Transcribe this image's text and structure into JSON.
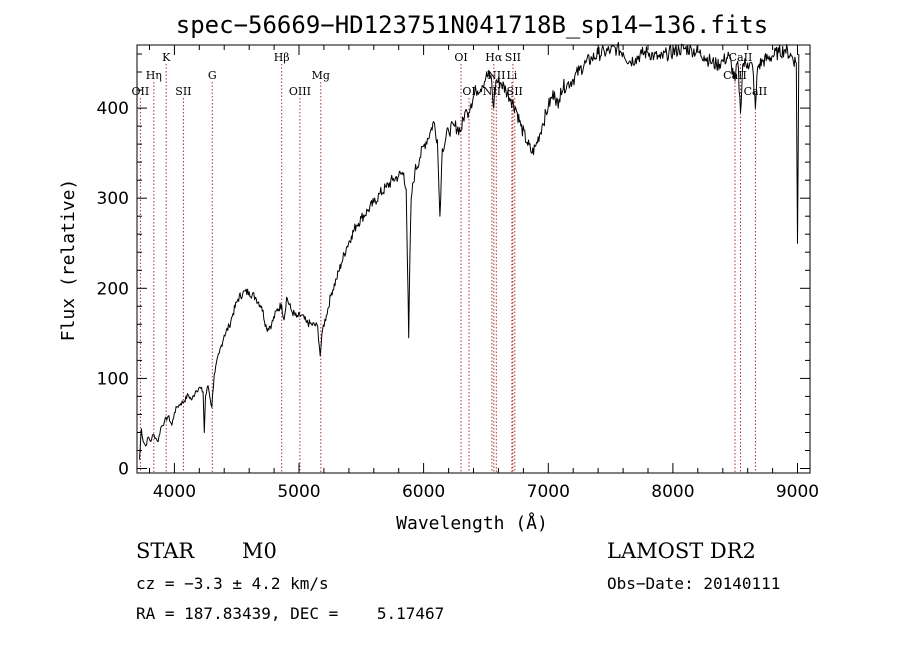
{
  "chart_data": {
    "type": "line",
    "title": "spec−56669−HD123751N041718B_sp14−136.fits",
    "xlabel": "Wavelength (Å)",
    "ylabel": "Flux (relative)",
    "xlim": [
      3700,
      9100
    ],
    "ylim": [
      -5,
      470
    ],
    "x_ticks": [
      4000,
      5000,
      6000,
      7000,
      8000,
      9000
    ],
    "y_ticks": [
      0,
      100,
      200,
      300,
      400
    ],
    "grid": false,
    "colors": {
      "spectrum": "#000000",
      "line_marker": "#b03030"
    },
    "series": [
      {
        "values": [
          [
            3720,
            10
          ],
          [
            3735,
            44
          ],
          [
            3750,
            30
          ],
          [
            3770,
            25
          ],
          [
            3790,
            35
          ],
          [
            3810,
            30
          ],
          [
            3830,
            38
          ],
          [
            3850,
            34
          ],
          [
            3870,
            30
          ],
          [
            3890,
            45
          ],
          [
            3920,
            52
          ],
          [
            3950,
            58
          ],
          [
            3980,
            48
          ],
          [
            4000,
            62
          ],
          [
            4020,
            68
          ],
          [
            4050,
            72
          ],
          [
            4080,
            75
          ],
          [
            4110,
            82
          ],
          [
            4140,
            76
          ],
          [
            4170,
            86
          ],
          [
            4200,
            90
          ],
          [
            4230,
            85
          ],
          [
            4240,
            40
          ],
          [
            4250,
            80
          ],
          [
            4270,
            92
          ],
          [
            4300,
            68
          ],
          [
            4320,
            105
          ],
          [
            4360,
            128
          ],
          [
            4400,
            148
          ],
          [
            4440,
            158
          ],
          [
            4470,
            172
          ],
          [
            4510,
            188
          ],
          [
            4550,
            195
          ],
          [
            4600,
            196
          ],
          [
            4650,
            190
          ],
          [
            4700,
            180
          ],
          [
            4740,
            155
          ],
          [
            4780,
            160
          ],
          [
            4820,
            175
          ],
          [
            4860,
            182
          ],
          [
            4880,
            165
          ],
          [
            4900,
            190
          ],
          [
            4940,
            175
          ],
          [
            4980,
            168
          ],
          [
            5020,
            170
          ],
          [
            5060,
            162
          ],
          [
            5100,
            160
          ],
          [
            5150,
            158
          ],
          [
            5170,
            125
          ],
          [
            5190,
            155
          ],
          [
            5220,
            170
          ],
          [
            5260,
            195
          ],
          [
            5300,
            210
          ],
          [
            5340,
            228
          ],
          [
            5380,
            245
          ],
          [
            5420,
            258
          ],
          [
            5460,
            270
          ],
          [
            5500,
            278
          ],
          [
            5550,
            286
          ],
          [
            5600,
            295
          ],
          [
            5650,
            305
          ],
          [
            5700,
            312
          ],
          [
            5750,
            320
          ],
          [
            5800,
            325
          ],
          [
            5840,
            328
          ],
          [
            5860,
            310
          ],
          [
            5870,
            230
          ],
          [
            5880,
            145
          ],
          [
            5890,
            235
          ],
          [
            5900,
            300
          ],
          [
            5930,
            330
          ],
          [
            5970,
            345
          ],
          [
            6000,
            358
          ],
          [
            6050,
            372
          ],
          [
            6080,
            385
          ],
          [
            6110,
            365
          ],
          [
            6130,
            280
          ],
          [
            6150,
            355
          ],
          [
            6200,
            375
          ],
          [
            6250,
            380
          ],
          [
            6300,
            375
          ],
          [
            6330,
            395
          ],
          [
            6350,
            395
          ],
          [
            6380,
            405
          ],
          [
            6420,
            420
          ],
          [
            6470,
            425
          ],
          [
            6500,
            435
          ],
          [
            6540,
            436
          ],
          [
            6562,
            400
          ],
          [
            6580,
            430
          ],
          [
            6620,
            428
          ],
          [
            6660,
            420
          ],
          [
            6700,
            410
          ],
          [
            6740,
            400
          ],
          [
            6780,
            380
          ],
          [
            6830,
            362
          ],
          [
            6870,
            350
          ],
          [
            6900,
            358
          ],
          [
            6950,
            380
          ],
          [
            7000,
            402
          ],
          [
            7050,
            418
          ],
          [
            7080,
            400
          ],
          [
            7100,
            422
          ],
          [
            7150,
            426
          ],
          [
            7200,
            432
          ],
          [
            7250,
            442
          ],
          [
            7300,
            450
          ],
          [
            7350,
            455
          ],
          [
            7400,
            460
          ],
          [
            7450,
            462
          ],
          [
            7500,
            464
          ],
          [
            7550,
            466
          ],
          [
            7600,
            462
          ],
          [
            7650,
            452
          ],
          [
            7700,
            455
          ],
          [
            7750,
            460
          ],
          [
            7800,
            462
          ],
          [
            7850,
            458
          ],
          [
            7900,
            455
          ],
          [
            7950,
            460
          ],
          [
            8000,
            462
          ],
          [
            8050,
            465
          ],
          [
            8100,
            466
          ],
          [
            8150,
            465
          ],
          [
            8200,
            462
          ],
          [
            8250,
            458
          ],
          [
            8300,
            452
          ],
          [
            8350,
            448
          ],
          [
            8400,
            452
          ],
          [
            8450,
            458
          ],
          [
            8498,
            430
          ],
          [
            8520,
            452
          ],
          [
            8542,
            395
          ],
          [
            8560,
            448
          ],
          [
            8600,
            450
          ],
          [
            8640,
            445
          ],
          [
            8662,
            400
          ],
          [
            8680,
            446
          ],
          [
            8720,
            452
          ],
          [
            8760,
            455
          ],
          [
            8800,
            458
          ],
          [
            8850,
            462
          ],
          [
            8900,
            465
          ],
          [
            8950,
            458
          ],
          [
            8990,
            450
          ],
          [
            9000,
            250
          ],
          [
            9010,
            460
          ]
        ]
      }
    ],
    "lines": [
      {
        "wave": 3727,
        "label": "OII",
        "row": 3
      },
      {
        "wave": 3835,
        "label": "Hη",
        "row": 2
      },
      {
        "wave": 3934,
        "label": "K",
        "row": 1
      },
      {
        "wave": 4072,
        "label": "SII",
        "row": 3
      },
      {
        "wave": 4304,
        "label": "G",
        "row": 2
      },
      {
        "wave": 4861,
        "label": "Hβ",
        "row": 1
      },
      {
        "wave": 5007,
        "label": "OIII",
        "row": 3
      },
      {
        "wave": 5175,
        "label": "Mg",
        "row": 2
      },
      {
        "wave": 6300,
        "label": "OI",
        "row": 1
      },
      {
        "wave": 6364,
        "label": "OI",
        "row": 3
      },
      {
        "wave": 6548,
        "label": "NII",
        "row": 3
      },
      {
        "wave": 6563,
        "label": "Hα",
        "row": 1
      },
      {
        "wave": 6583,
        "label": "NII",
        "row": 2
      },
      {
        "wave": 6708,
        "label": "Li",
        "row": 2
      },
      {
        "wave": 6716,
        "label": "SII",
        "row": 1
      },
      {
        "wave": 6731,
        "label": "SII",
        "row": 3
      },
      {
        "wave": 8498,
        "label": "CaII",
        "row": 2
      },
      {
        "wave": 8542,
        "label": "CaII",
        "row": 1
      },
      {
        "wave": 8662,
        "label": "CaII",
        "row": 3
      }
    ]
  },
  "info": {
    "object_class": "STAR",
    "subclass": "M0",
    "survey": "LAMOST DR2",
    "cz": "cz = −3.3 ± 4.2 km/s",
    "obs_date": "Obs−Date: 20140111",
    "coords": "RA = 187.83439, DEC =    5.17467"
  }
}
